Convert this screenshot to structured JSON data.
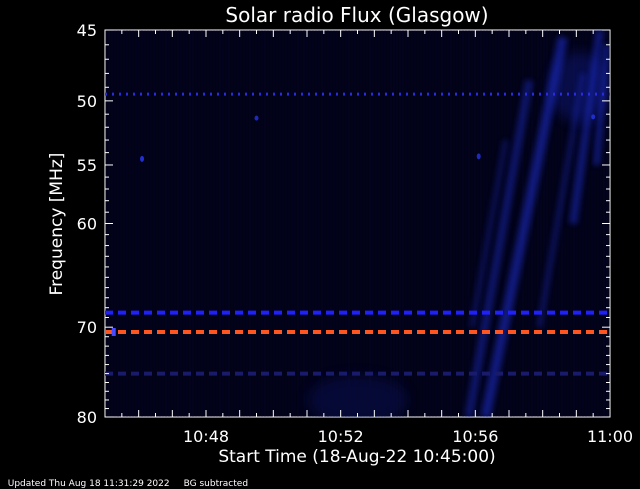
{
  "chart_data": {
    "type": "heatmap",
    "title": "Solar radio Flux (Glasgow)",
    "xlabel": "Start Time (18-Aug-22 10:45:00)",
    "ylabel": "Frequency [MHz]",
    "xlim_minutes_after_start": [
      0,
      15
    ],
    "ylim_mhz": [
      45,
      80
    ],
    "x_ticks": [
      {
        "label": "10:48",
        "minutes": 3
      },
      {
        "label": "10:52",
        "minutes": 7
      },
      {
        "label": "10:56",
        "minutes": 11
      },
      {
        "label": "11:00",
        "minutes": 15
      }
    ],
    "y_ticks": [
      {
        "label": "45",
        "mhz": 45
      },
      {
        "label": "50",
        "mhz": 50
      },
      {
        "label": "55",
        "mhz": 55
      },
      {
        "label": "60",
        "mhz": 60
      },
      {
        "label": "70",
        "mhz": 70
      },
      {
        "label": "80",
        "mhz": 80
      }
    ],
    "interference_lines": [
      {
        "mhz": 49.5,
        "color": "#2a2adf",
        "style": "dotted"
      },
      {
        "mhz": 68.5,
        "color": "#2020ff",
        "style": "dashed"
      },
      {
        "mhz": 70.5,
        "color": "#ff5520",
        "style": "dashed"
      },
      {
        "mhz": 75,
        "color": "#1a1a6a",
        "style": "dashed"
      }
    ],
    "colors": {
      "background": "#000000",
      "plot_background": "#020216",
      "emission": "#1c2fd0"
    }
  },
  "footer": {
    "updated": "Updated Thu Aug 18 11:31:29 2022",
    "note": "BG subtracted"
  }
}
